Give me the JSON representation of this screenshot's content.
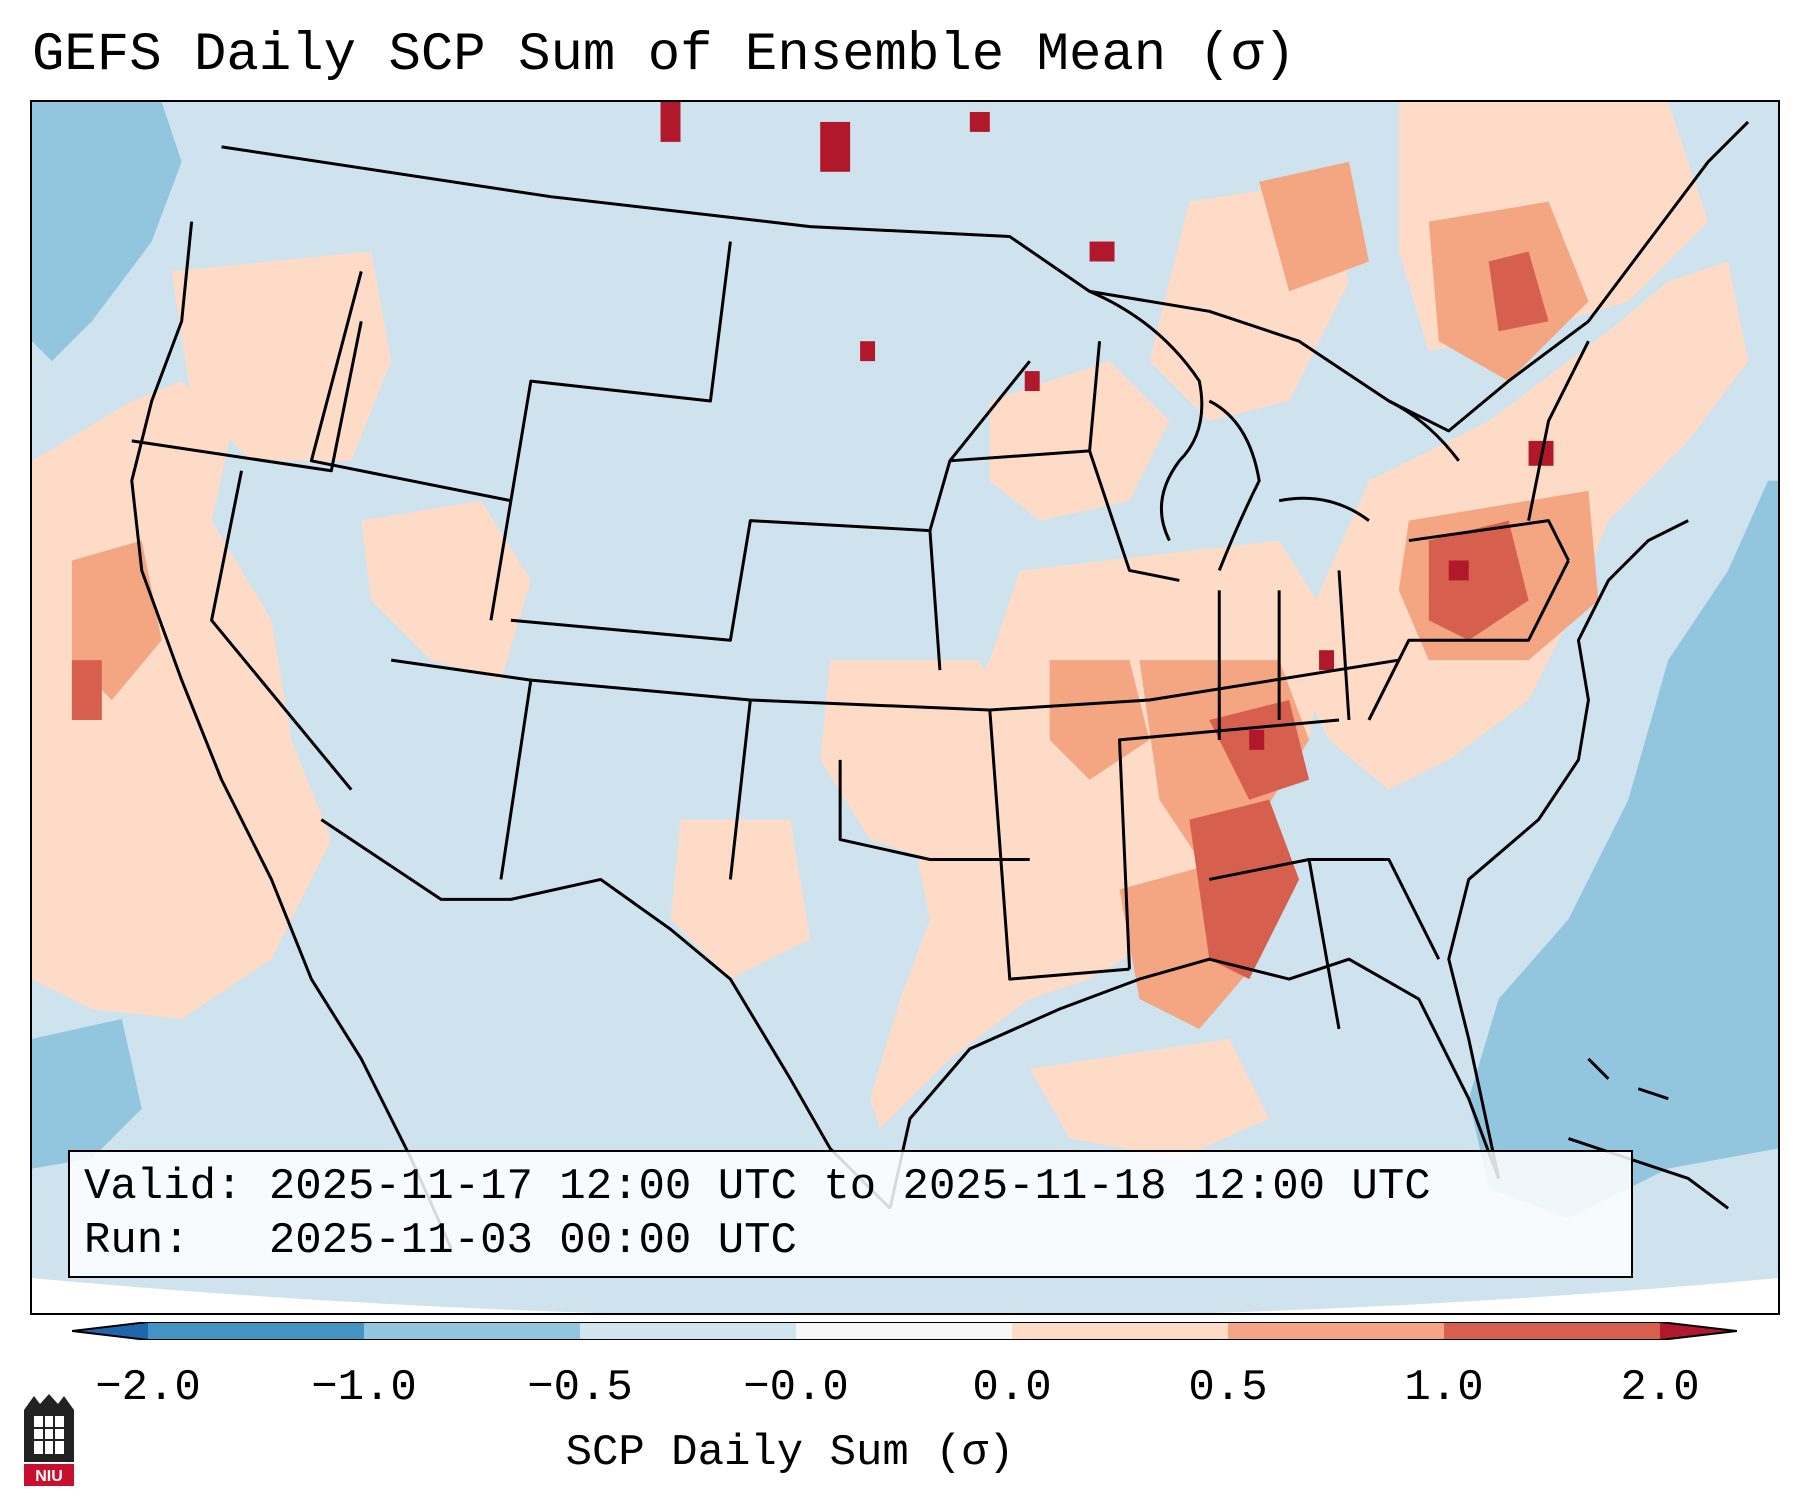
{
  "title": "GEFS Daily SCP Sum of Ensemble Mean (σ)",
  "info": {
    "valid_label": "Valid:",
    "valid_value": "2025-11-17 12:00 UTC to 2025-11-18 12:00 UTC",
    "run_label": "Run:",
    "run_value": "2025-11-03 00:00 UTC"
  },
  "colorbar": {
    "label": "SCP Daily Sum (σ)",
    "ticks": [
      "−2.0",
      "−1.0",
      "−0.5",
      "−0.0",
      "0.0",
      "0.5",
      "1.0",
      "2.0"
    ],
    "colors": {
      "below_min": "#2166ac",
      "bin_neg2_neg1": "#4393c3",
      "bin_neg1_neg05": "#92c5de",
      "bin_neg05_0": "#d1e5f0",
      "bin_zero": "#f7f7f7",
      "bin_0_05": "#fddbc7",
      "bin_05_1": "#f4a582",
      "bin_1_2": "#d6604d",
      "above_max": "#b2182b"
    }
  },
  "logo": {
    "text": "NIU"
  },
  "colors": {
    "background_field": "#cfe3ef",
    "ocean_low": "#92c5de",
    "light_positive": "#fddbc7",
    "medium_positive": "#f4a582",
    "high_positive": "#d6604d",
    "extreme_positive": "#b2182b",
    "borders": "#000000"
  }
}
